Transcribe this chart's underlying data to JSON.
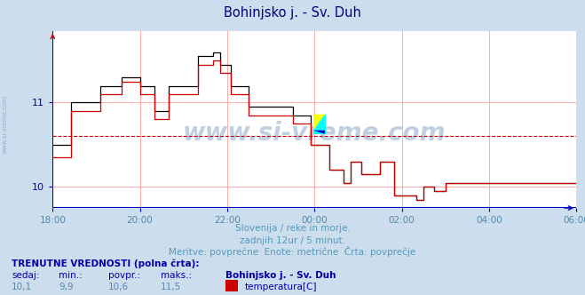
{
  "title": "Bohinjsko j. - Sv. Duh",
  "title_color": "#000080",
  "bg_color": "#ccdded",
  "plot_bg_color": "#ffffff",
  "grid_color": "#ffaaaa",
  "axis_color": "#0000bb",
  "line_color": "#cc0000",
  "line2_color": "#000000",
  "dashed_line_color": "#cc0000",
  "dashed_line_y": 10.6,
  "ylabel_color": "#0000aa",
  "xlabel_color": "#5588aa",
  "watermark": "www.si-vreme.com",
  "watermark_color": "#336699",
  "watermark_alpha": 0.3,
  "subtitle1": "Slovenija / reke in morje.",
  "subtitle2": "zadnjih 12ur / 5 minut.",
  "subtitle3": "Meritve: povprečne  Enote: metrične  Črta: povprečje",
  "subtitle_color": "#5599bb",
  "footer_title": "TRENUTNE VREDNOSTI (polna črta):",
  "footer_labels": [
    "sedaj:",
    "min.:",
    "povpr.:",
    "maks.:"
  ],
  "footer_values": [
    "10,1",
    "9,9",
    "10,6",
    "11,5"
  ],
  "footer_series_name": "Bohinjsko j. - Sv. Duh",
  "footer_measure": "temperatura[C]",
  "footer_color": "#0000aa",
  "footer_value_color": "#5588aa",
  "ylim": [
    9.75,
    11.85
  ],
  "yticks": [
    10.0,
    11.0
  ],
  "xtick_labels": [
    "18:00",
    "20:00",
    "22:00",
    "00:00",
    "02:00",
    "04:00",
    "06:00"
  ],
  "xtick_positions": [
    0,
    24,
    48,
    72,
    96,
    120,
    144
  ],
  "total_points": 145,
  "temperatures": [
    10.35,
    10.35,
    10.35,
    10.35,
    10.35,
    10.9,
    10.9,
    10.9,
    10.9,
    10.9,
    10.9,
    10.9,
    10.9,
    11.1,
    11.1,
    11.1,
    11.1,
    11.1,
    11.1,
    11.25,
    11.25,
    11.25,
    11.25,
    11.25,
    11.1,
    11.1,
    11.1,
    11.1,
    10.8,
    10.8,
    10.8,
    10.8,
    11.1,
    11.1,
    11.1,
    11.1,
    11.1,
    11.1,
    11.1,
    11.1,
    11.45,
    11.45,
    11.45,
    11.45,
    11.5,
    11.5,
    11.35,
    11.35,
    11.35,
    11.1,
    11.1,
    11.1,
    11.1,
    11.1,
    10.85,
    10.85,
    10.85,
    10.85,
    10.85,
    10.85,
    10.85,
    10.85,
    10.85,
    10.85,
    10.85,
    10.85,
    10.75,
    10.75,
    10.75,
    10.75,
    10.75,
    10.5,
    10.5,
    10.5,
    10.5,
    10.5,
    10.2,
    10.2,
    10.2,
    10.2,
    10.05,
    10.05,
    10.3,
    10.3,
    10.3,
    10.15,
    10.15,
    10.15,
    10.15,
    10.15,
    10.3,
    10.3,
    10.3,
    10.3,
    9.9,
    9.9,
    9.9,
    9.9,
    9.9,
    9.9,
    9.85,
    9.85,
    10.0,
    10.0,
    10.0,
    9.95,
    9.95,
    9.95,
    10.05,
    10.05,
    10.05,
    10.05,
    10.05,
    10.05,
    10.05,
    10.05,
    10.05,
    10.05,
    10.05,
    10.05,
    10.05,
    10.05,
    10.05,
    10.05,
    10.05,
    10.05,
    10.05,
    10.05,
    10.05,
    10.05,
    10.05,
    10.05,
    10.05,
    10.05,
    10.05,
    10.05,
    10.05,
    10.05,
    10.05,
    10.05,
    10.05
  ],
  "temps2": [
    10.5,
    10.5,
    10.5,
    10.5,
    10.5,
    11.0,
    11.0,
    11.0,
    11.0,
    11.0,
    11.0,
    11.0,
    11.0,
    11.2,
    11.2,
    11.2,
    11.2,
    11.2,
    11.2,
    11.3,
    11.3,
    11.3,
    11.3,
    11.3,
    11.2,
    11.2,
    11.2,
    11.2,
    10.9,
    10.9,
    10.9,
    10.9,
    11.2,
    11.2,
    11.2,
    11.2,
    11.2,
    11.2,
    11.2,
    11.2,
    11.55,
    11.55,
    11.55,
    11.55,
    11.6,
    11.6,
    11.45,
    11.45,
    11.45,
    11.2,
    11.2,
    11.2,
    11.2,
    11.2,
    10.95,
    10.95,
    10.95,
    10.95,
    10.95,
    10.95,
    10.95,
    10.95,
    10.95,
    10.95,
    10.95,
    10.95,
    10.85,
    10.85,
    10.85,
    10.85,
    10.85,
    10.5,
    10.5,
    10.5,
    10.5,
    10.5,
    10.2,
    10.2,
    10.2,
    10.2,
    10.05,
    10.05,
    10.3,
    10.3,
    10.3,
    10.15,
    10.15,
    10.15,
    10.15,
    10.15,
    10.3,
    10.3,
    10.3,
    10.3,
    9.9,
    9.9,
    9.9,
    9.9,
    9.9,
    9.9,
    9.85,
    9.85,
    10.0,
    10.0,
    10.0,
    9.95,
    9.95,
    9.95,
    10.05,
    10.05,
    10.05,
    10.05,
    10.05,
    10.05,
    10.05,
    10.05,
    10.05,
    10.05,
    10.05,
    10.05,
    10.05,
    10.05,
    10.05,
    10.05,
    10.05,
    10.05,
    10.05,
    10.05,
    10.05,
    10.05,
    10.05,
    10.05,
    10.05,
    10.05,
    10.05,
    10.05,
    10.05,
    10.05,
    10.05,
    10.05,
    10.05
  ]
}
